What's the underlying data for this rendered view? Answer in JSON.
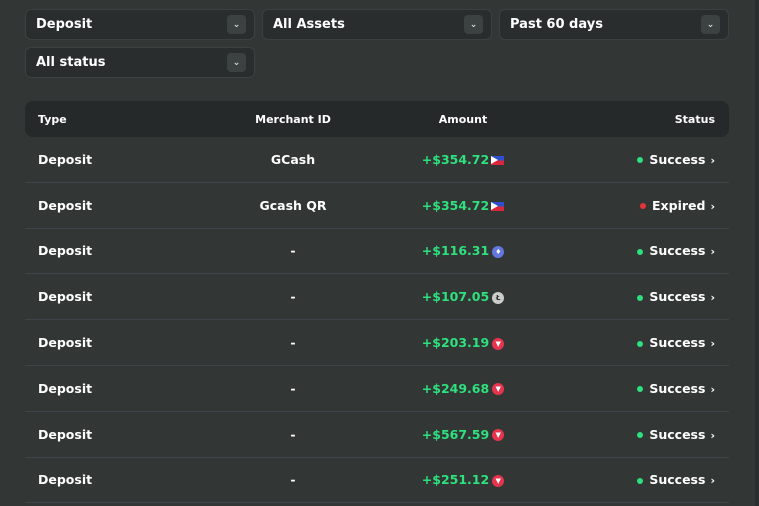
{
  "filters": [
    {
      "value": "Deposit"
    },
    {
      "value": "All Assets"
    },
    {
      "value": "Past 60 days"
    },
    {
      "value": "All status"
    }
  ],
  "table": {
    "headers": [
      "Type",
      "Merchant ID",
      "Amount",
      "Status"
    ],
    "rows": [
      {
        "type": "Deposit",
        "merchant": "GCash",
        "amount": "+$354.72",
        "asset": "ph-flag",
        "status": "Success"
      },
      {
        "type": "Deposit",
        "merchant": "Gcash QR",
        "amount": "+$354.72",
        "asset": "ph-flag",
        "status": "Expired"
      },
      {
        "type": "Deposit",
        "merchant": "-",
        "amount": "+$116.31",
        "asset": "eth-coin",
        "status": "Success"
      },
      {
        "type": "Deposit",
        "merchant": "-",
        "amount": "+$107.05",
        "asset": "ltc-coin",
        "status": "Success"
      },
      {
        "type": "Deposit",
        "merchant": "-",
        "amount": "+$203.19",
        "asset": "trx-coin",
        "status": "Success"
      },
      {
        "type": "Deposit",
        "merchant": "-",
        "amount": "+$249.68",
        "asset": "trx-coin",
        "status": "Success"
      },
      {
        "type": "Deposit",
        "merchant": "-",
        "amount": "+$567.59",
        "asset": "trx-coin",
        "status": "Success"
      },
      {
        "type": "Deposit",
        "merchant": "-",
        "amount": "+$251.12",
        "asset": "trx-coin",
        "status": "Success"
      }
    ]
  },
  "colors": {
    "success": "#2ee07e",
    "expired": "#e8333a",
    "amount": "#2ee07e"
  }
}
